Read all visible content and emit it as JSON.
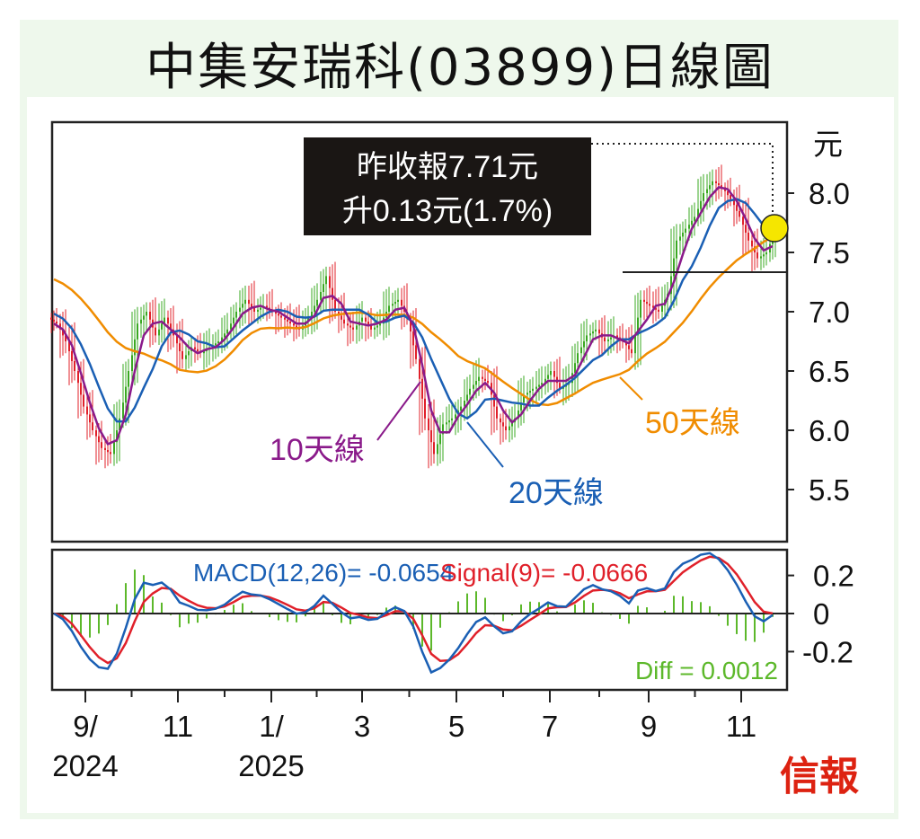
{
  "title": "中集安瑞科(03899)日線圖",
  "annotation": {
    "line1": "昨收報7.71元",
    "line2": "升0.13元(1.7%)"
  },
  "ma_labels": {
    "ma10": "10天線",
    "ma20": "20天線",
    "ma50": "50天線"
  },
  "macd_legend": {
    "macd": "MACD(12,26)= -0.0654",
    "signal": "Signal(9)= -0.0666",
    "diff": "Diff = 0.0012"
  },
  "logo": "信報",
  "colors": {
    "ma10": "#8a1a8a",
    "ma20": "#1a5fb4",
    "ma50": "#f08c00",
    "up": "#3aa822",
    "down": "#e0202a",
    "macd": "#1a5fb4",
    "signal": "#e0202a",
    "hist": "#5cb82a"
  },
  "chart_data": {
    "type": "line",
    "title": "中集安瑞科(03899)日線圖",
    "ylabel": "元",
    "ylim": [
      5.2,
      8.5
    ],
    "yticks": [
      "8.0",
      "7.5",
      "7.0",
      "6.5",
      "6.0",
      "5.5"
    ],
    "ytick_values": [
      8.0,
      7.5,
      7.0,
      6.5,
      6.0,
      5.5
    ],
    "xticks": [
      {
        "l1": "9/",
        "l2": "2024"
      },
      {
        "l1": "11",
        "l2": ""
      },
      {
        "l1": "1/",
        "l2": "2025"
      },
      {
        "l1": "3",
        "l2": ""
      },
      {
        "l1": "5",
        "l2": ""
      },
      {
        "l1": "7",
        "l2": ""
      },
      {
        "l1": "9",
        "l2": ""
      },
      {
        "l1": "11",
        "l2": ""
      }
    ],
    "close": [
      6.9,
      6.75,
      6.5,
      6.2,
      6.0,
      5.85,
      5.8,
      6.1,
      6.5,
      6.9,
      7.0,
      6.8,
      6.95,
      6.8,
      6.6,
      6.7,
      6.65,
      6.7,
      6.75,
      6.85,
      7.0,
      7.1,
      7.0,
      7.05,
      7.0,
      6.95,
      6.9,
      6.85,
      6.95,
      7.1,
      7.3,
      7.0,
      6.9,
      6.85,
      6.95,
      6.85,
      6.9,
      7.05,
      7.1,
      6.95,
      6.6,
      6.1,
      5.8,
      6.05,
      6.1,
      6.2,
      6.35,
      6.45,
      6.4,
      6.1,
      6.0,
      6.1,
      6.3,
      6.35,
      6.4,
      6.5,
      6.35,
      6.4,
      6.65,
      6.8,
      6.85,
      6.75,
      6.8,
      6.75,
      6.65,
      7.1,
      7.05,
      7.0,
      7.15,
      7.6,
      7.7,
      7.8,
      8.0,
      8.1,
      8.05,
      7.95,
      7.8,
      7.6,
      7.45,
      7.5,
      7.71
    ],
    "support_level": 7.33,
    "macd_panel": {
      "yticks": [
        "0.2",
        "0",
        "-0.2"
      ],
      "ytick_values": [
        0.2,
        0,
        -0.2
      ],
      "ylim": [
        -0.33,
        0.33
      ]
    }
  }
}
